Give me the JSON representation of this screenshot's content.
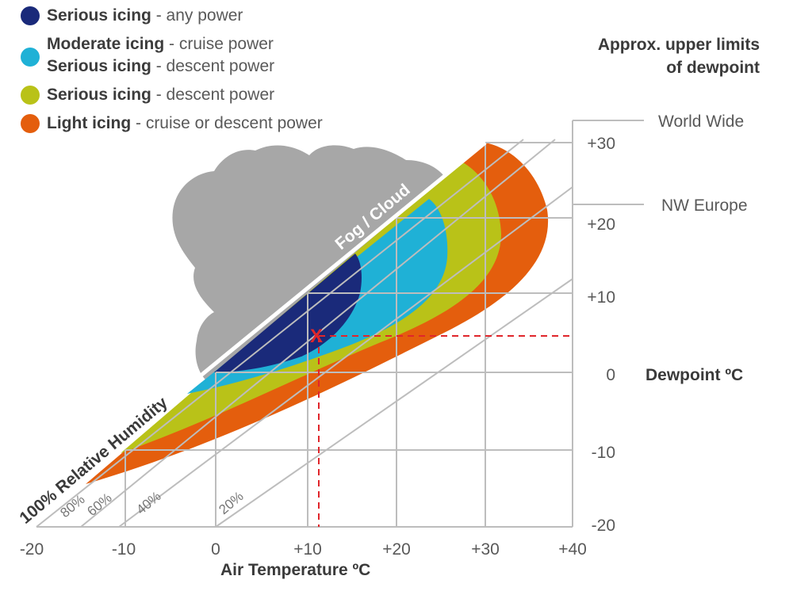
{
  "legend": [
    {
      "bold": "Serious icing",
      "rest": " - any power",
      "color": "#1a2a7a"
    },
    {
      "bold": "Moderate icing",
      "rest": " - cruise power",
      "color": "#1fb1d6",
      "bold2": "Serious icing",
      "rest2": " - descent power"
    },
    {
      "bold": "Serious icing",
      "rest": " - descent power",
      "color": "#b9c218"
    },
    {
      "bold": "Light icing",
      "rest": " - cruise or descent power",
      "color": "#e45e0d"
    }
  ],
  "limits": {
    "title_line1": "Approx. upper limits",
    "title_line2": "of dewpoint",
    "world_wide": "World Wide",
    "nw_europe": "NW Europe"
  },
  "chart_data": {
    "type": "diagram",
    "x_axis": {
      "title": "Air Temperature ºC",
      "ticks": [
        "-20",
        "-10",
        "0",
        "+10",
        "+20",
        "+30",
        "+40"
      ],
      "range": [
        -20,
        40
      ]
    },
    "y_axis": {
      "title": "Dewpoint ºC",
      "ticks": [
        "+30",
        "+20",
        "+10",
        "0",
        "-10",
        "-20"
      ],
      "range": [
        -20,
        32
      ]
    },
    "humidity_lines": [
      "100% Relative Humidity",
      "80%",
      "60%",
      "40%",
      "20%"
    ],
    "cloud_label": "Fog / Cloud",
    "marker": {
      "label": "X",
      "air_temp": 11.5,
      "dewpoint": 5
    }
  },
  "colors": {
    "serious_any": "#1a2a7a",
    "moderate": "#1fb1d6",
    "serious_descent": "#b9c218",
    "light": "#e45e0d",
    "cloud": "#a7a7a7",
    "grid": "#bdbdbd",
    "marker": "#e0262b"
  }
}
